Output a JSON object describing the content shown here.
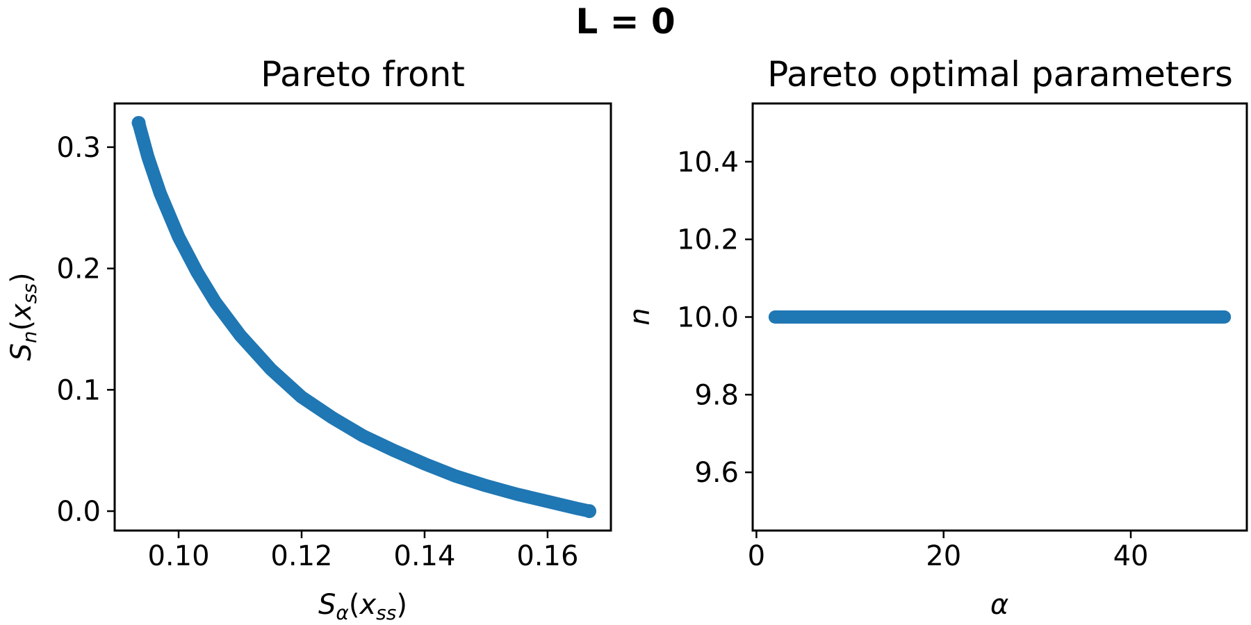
{
  "figure": {
    "suptitle": "L = 0"
  },
  "chart_data": [
    {
      "type": "scatter",
      "title": "Pareto front",
      "xlabel": {
        "main": "S",
        "main_sub": "α",
        "arg": "x",
        "arg_sub": "ss"
      },
      "ylabel": {
        "main": "S",
        "main_sub": "n",
        "arg": "x",
        "arg_sub": "ss"
      },
      "xlim": [
        0.0896,
        0.1703
      ],
      "ylim": [
        -0.016,
        0.336
      ],
      "xticks": [
        0.1,
        0.12,
        0.14,
        0.16
      ],
      "xtick_labels": [
        "0.10",
        "0.12",
        "0.14",
        "0.16"
      ],
      "yticks": [
        0.0,
        0.1,
        0.2,
        0.3
      ],
      "ytick_labels": [
        "0.0",
        "0.1",
        "0.2",
        "0.3"
      ],
      "grid": false,
      "color": "#1f77b4",
      "points": [
        [
          0.0935,
          0.32
        ],
        [
          0.095,
          0.292
        ],
        [
          0.097,
          0.262
        ],
        [
          0.1,
          0.226
        ],
        [
          0.103,
          0.197
        ],
        [
          0.106,
          0.172
        ],
        [
          0.11,
          0.145
        ],
        [
          0.115,
          0.117
        ],
        [
          0.12,
          0.094
        ],
        [
          0.125,
          0.077
        ],
        [
          0.13,
          0.062
        ],
        [
          0.135,
          0.05
        ],
        [
          0.14,
          0.039
        ],
        [
          0.145,
          0.029
        ],
        [
          0.15,
          0.021
        ],
        [
          0.155,
          0.014
        ],
        [
          0.16,
          0.008
        ],
        [
          0.165,
          0.002
        ],
        [
          0.1668,
          0.0
        ]
      ]
    },
    {
      "type": "scatter",
      "title": "Pareto optimal parameters",
      "xlabel": {
        "main": "α"
      },
      "ylabel": {
        "main": "n"
      },
      "xlim": [
        -0.4,
        52.4
      ],
      "ylim": [
        9.45,
        10.55
      ],
      "xticks": [
        0,
        20,
        40
      ],
      "xtick_labels": [
        "0",
        "20",
        "40"
      ],
      "yticks": [
        9.6,
        9.8,
        10.0,
        10.2,
        10.4
      ],
      "ytick_labels": [
        "9.6",
        "9.8",
        "10.0",
        "10.2",
        "10.4"
      ],
      "grid": false,
      "color": "#1f77b4",
      "x_range": [
        2,
        50
      ],
      "y_value": 10.0
    }
  ]
}
